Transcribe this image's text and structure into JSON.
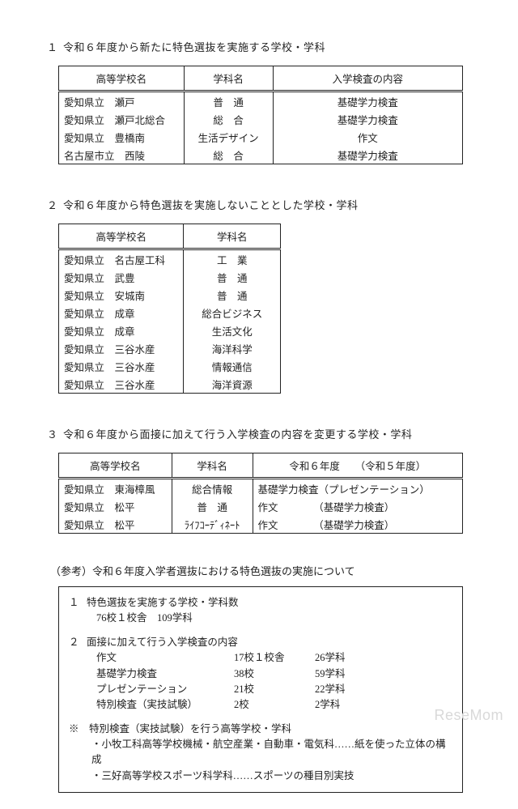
{
  "section1": {
    "title": "令和６年度から新たに特色選抜を実施する学校・学科",
    "headers": [
      "高等学校名",
      "学科名",
      "入学検査の内容"
    ],
    "rows": [
      {
        "school_prefix": "愛知県立",
        "school_name": "瀬戸",
        "dept_raw": "普　通",
        "exam": "基礎学力検査"
      },
      {
        "school_prefix": "愛知県立",
        "school_name": "瀬戸北総合",
        "dept_raw": "総　合",
        "exam": "基礎学力検査"
      },
      {
        "school_prefix": "愛知県立",
        "school_name": "豊橋南",
        "dept_raw": "生活デザイン",
        "exam": "作文"
      },
      {
        "school_prefix": "名古屋市立",
        "school_name": "西陵",
        "dept_raw": "総　合",
        "exam": "基礎学力検査"
      }
    ]
  },
  "section2": {
    "title": "令和６年度から特色選抜を実施しないこととした学校・学科",
    "headers": [
      "高等学校名",
      "学科名"
    ],
    "rows": [
      {
        "school_prefix": "愛知県立",
        "school_name": "名古屋工科",
        "dept_raw": "工　業"
      },
      {
        "school_prefix": "愛知県立",
        "school_name": "武豊",
        "dept_raw": "普　通"
      },
      {
        "school_prefix": "愛知県立",
        "school_name": "安城南",
        "dept_raw": "普　通"
      },
      {
        "school_prefix": "愛知県立",
        "school_name": "成章",
        "dept_raw": "総合ビジネス"
      },
      {
        "school_prefix": "愛知県立",
        "school_name": "成章",
        "dept_raw": "生活文化"
      },
      {
        "school_prefix": "愛知県立",
        "school_name": "三谷水産",
        "dept_raw": "海洋科学"
      },
      {
        "school_prefix": "愛知県立",
        "school_name": "三谷水産",
        "dept_raw": "情報通信"
      },
      {
        "school_prefix": "愛知県立",
        "school_name": "三谷水産",
        "dept_raw": "海洋資源"
      }
    ]
  },
  "section3": {
    "title": "令和６年度から面接に加えて行う入学検査の内容を変更する学校・学科",
    "headers": [
      "高等学校名",
      "学科名",
      "令和６年度　　（令和５年度）"
    ],
    "rows": [
      {
        "school_prefix": "愛知県立",
        "school_name": "東海樟風",
        "dept_raw": "総合情報",
        "exam": "基礎学力検査（プレゼンテーション）"
      },
      {
        "school_prefix": "愛知県立",
        "school_name": "松平",
        "dept_raw": "普　通",
        "exam": "作文　　　　（基礎学力検査）"
      },
      {
        "school_prefix": "愛知県立",
        "school_name": "松平",
        "dept_raw": "ﾗｲﾌｺｰﾃﾞｨﾈｰﾄ",
        "exam": "作文　　　　（基礎学力検査）"
      }
    ]
  },
  "reference": {
    "title": "（参考）令和６年度入学者選抜における特色選抜の実施について",
    "item1_label": "特色選抜を実施する学校・学科数",
    "item1_value": "76校１校舎　109学科",
    "item2_label": "面接に加えて行う入学検査の内容",
    "item2_rows": [
      {
        "name": "作文",
        "v1": "17校１校舎",
        "v2": "26学科"
      },
      {
        "name": "基礎学力検査",
        "v1": "38校",
        "v2": "59学科"
      },
      {
        "name": "プレゼンテーション",
        "v1": "21校",
        "v2": "22学科"
      },
      {
        "name": "特別検査（実技試験）",
        "v1": "2校",
        "v2": "2学科"
      }
    ],
    "note_head": "※　特別検査（実技試験）を行う高等学校・学科",
    "note_lines": [
      "・小牧工科高等学校機械・航空産業・自動車・電気科……紙を使った立体の構成",
      "・三好高等学校スポーツ科学科……スポーツの種目別実技"
    ]
  },
  "watermark": {
    "rese": "Rese",
    "mom": "Mom"
  }
}
